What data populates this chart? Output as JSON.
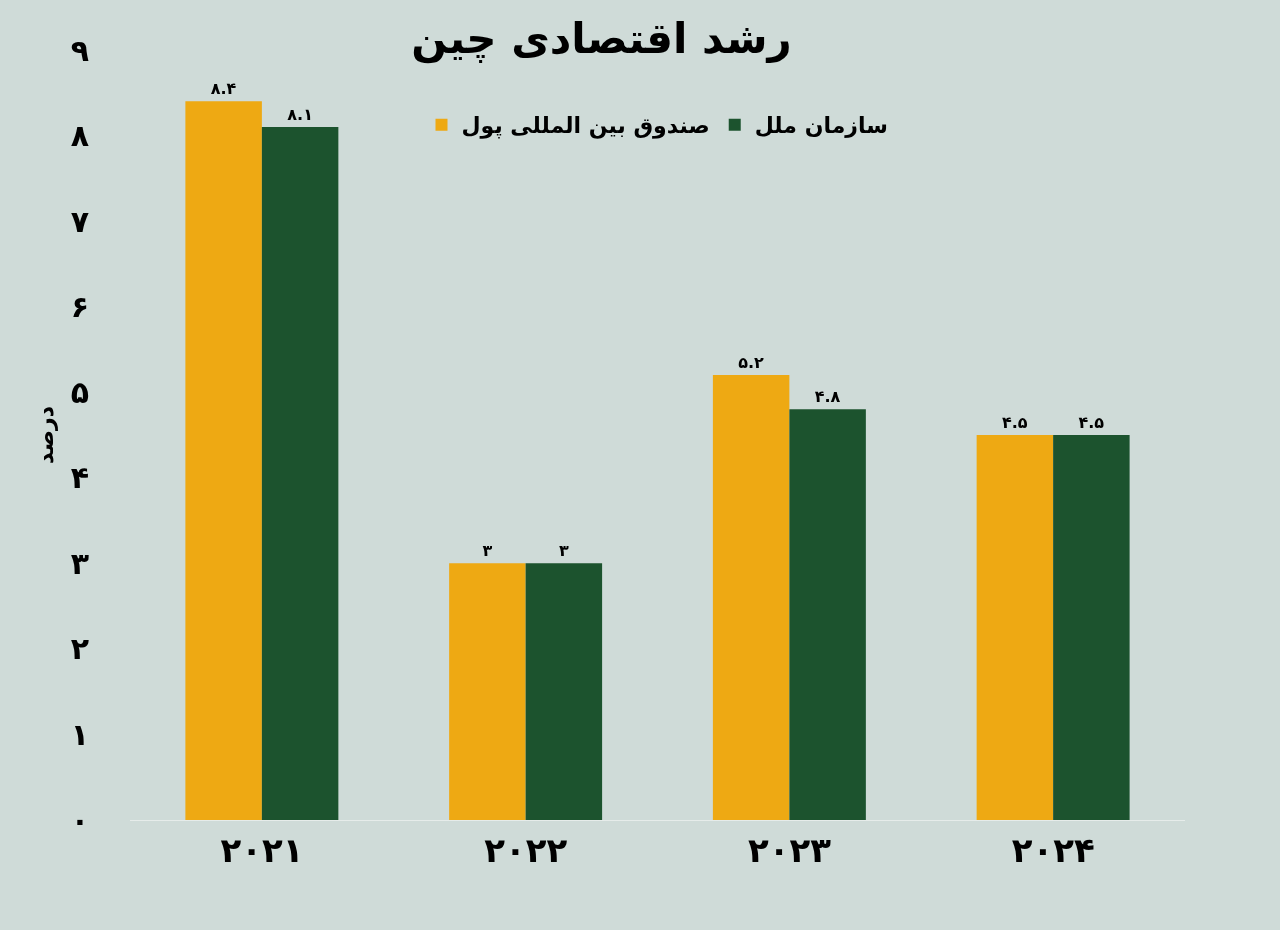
{
  "chart_data": {
    "type": "bar",
    "title": "رشد اقتصادی چین",
    "ylabel": "درصد",
    "categories": [
      "۲۰۲۱",
      "۲۰۲۲",
      "۲۰۲۳",
      "۲۰۲۴"
    ],
    "series": [
      {
        "name": "صندوق بین المللی پول",
        "color": "#eea913",
        "values": [
          8.4,
          3,
          5.2,
          4.5
        ],
        "value_labels": [
          "۸.۴",
          "۳",
          "۵.۲",
          "۴.۵"
        ]
      },
      {
        "name": "سازمان ملل",
        "color": "#1c532e",
        "values": [
          8.1,
          3,
          4.8,
          4.5
        ],
        "value_labels": [
          "۸.۱",
          "۳",
          "۴.۸",
          "۴.۵"
        ]
      }
    ],
    "ylim": [
      0,
      9
    ],
    "yticks": [
      {
        "value": 0,
        "label": "۰"
      },
      {
        "value": 1,
        "label": "۱"
      },
      {
        "value": 2,
        "label": "۲"
      },
      {
        "value": 3,
        "label": "۳"
      },
      {
        "value": 4,
        "label": "۴"
      },
      {
        "value": 5,
        "label": "۵"
      },
      {
        "value": 6,
        "label": "۶"
      },
      {
        "value": 7,
        "label": "۷"
      },
      {
        "value": 8,
        "label": "۸"
      },
      {
        "value": 9,
        "label": "۹"
      }
    ],
    "grid": false,
    "legend": "top"
  }
}
